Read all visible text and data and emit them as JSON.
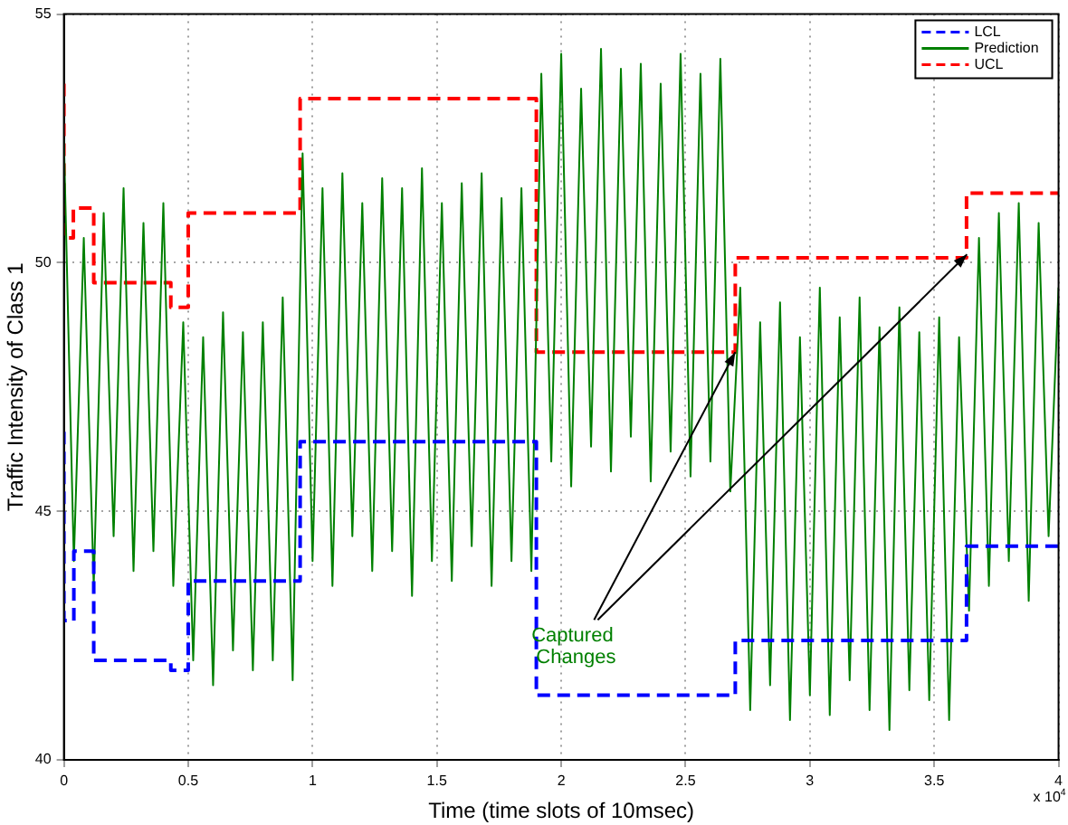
{
  "chart_data": {
    "type": "line",
    "xlabel": "Time (time slots of 10msec)",
    "ylabel": "Traffic Intensity of Class 1",
    "xlim": [
      0,
      4
    ],
    "xticks": [
      0,
      0.5,
      1,
      1.5,
      2,
      2.5,
      3,
      3.5,
      4
    ],
    "ylim": [
      40,
      55
    ],
    "yticks": [
      40,
      45,
      50,
      55
    ],
    "grid": true,
    "legend": "top right",
    "marker": "none",
    "annotations": [
      "x 10$^{4}$",
      {
        "text": "Captured Changes",
        "x": 2.7,
        "y": 48.2
      }
    ],
    "series": [
      {
        "name": "LCL",
        "type": "step",
        "line_style": "dashed",
        "color": "#0000ff",
        "x": [
          0,
          0.04,
          0.12,
          0.43,
          0.5,
          0.95,
          1.9,
          2.7,
          3.63,
          3.84,
          4
        ],
        "values": [
          46.6,
          42.8,
          44.2,
          42.0,
          41.8,
          43.6,
          46.4,
          41.3,
          42.4,
          44.3,
          44.3
        ]
      },
      {
        "name": "Prediction",
        "type": "line",
        "line_style": "solid",
        "color": "#008000",
        "x": [
          0,
          0.04,
          0.08,
          0.12,
          0.16,
          0.2,
          0.24,
          0.28,
          0.32,
          0.36,
          0.4,
          0.44,
          0.48,
          0.52,
          0.56,
          0.6,
          0.64,
          0.68,
          0.72,
          0.76,
          0.8,
          0.84,
          0.88,
          0.92,
          0.96,
          1,
          1.04,
          1.08,
          1.12,
          1.16,
          1.2,
          1.24,
          1.28,
          1.32,
          1.36,
          1.4,
          1.44,
          1.48,
          1.52,
          1.56,
          1.6,
          1.64,
          1.68,
          1.72,
          1.76,
          1.8,
          1.84,
          1.88,
          1.92,
          1.96,
          2,
          2.04,
          2.08,
          2.12,
          2.16,
          2.2,
          2.24,
          2.28,
          2.32,
          2.36,
          2.4,
          2.44,
          2.48,
          2.52,
          2.56,
          2.6,
          2.64,
          2.68,
          2.72,
          2.76,
          2.8,
          2.84,
          2.88,
          2.92,
          2.96,
          3,
          3.04,
          3.08,
          3.12,
          3.16,
          3.2,
          3.24,
          3.28,
          3.32,
          3.36,
          3.4,
          3.44,
          3.48,
          3.52,
          3.56,
          3.6,
          3.64,
          3.68,
          3.72,
          3.76,
          3.8,
          3.84,
          3.88,
          3.92,
          3.96,
          4
        ],
        "values": [
          52.5,
          44,
          50.5,
          43.5,
          51,
          44.5,
          51.5,
          43.8,
          50.8,
          44.2,
          51.2,
          43.5,
          48.8,
          42,
          48.5,
          41.5,
          49,
          42.2,
          48.6,
          41.8,
          48.8,
          42,
          49.3,
          41.6,
          52.2,
          44,
          51.5,
          43.5,
          51.8,
          44.5,
          51.2,
          43.8,
          51.7,
          44.2,
          51.5,
          43.3,
          51.9,
          44,
          51.2,
          43.6,
          51.6,
          44.3,
          51.8,
          43.5,
          51.3,
          44,
          51.5,
          43.8,
          53.8,
          46,
          54.2,
          45.5,
          53.5,
          46.3,
          54.3,
          45.8,
          53.9,
          46.5,
          54,
          45.6,
          53.6,
          46.2,
          54.2,
          45.7,
          53.8,
          46,
          54.1,
          45.4,
          49.5,
          41,
          48.8,
          41.5,
          49.2,
          40.8,
          48.5,
          41.3,
          49.5,
          40.9,
          48.9,
          41.6,
          49.3,
          41,
          48.7,
          40.6,
          49.1,
          41.4,
          48.6,
          41.2,
          48.9,
          40.8,
          48.5,
          43,
          50.5,
          43.5,
          51,
          44,
          51.2,
          43.2,
          50.8,
          44.5,
          49.5
        ]
      },
      {
        "name": "UCL",
        "type": "step",
        "line_style": "dashed",
        "color": "#ff0000",
        "x": [
          0,
          0.038,
          0.12,
          0.43,
          0.5,
          0.95,
          1.9,
          2.7,
          3.63,
          3.84,
          4
        ],
        "values": [
          53.6,
          50.5,
          51.1,
          49.6,
          49.1,
          51.0,
          53.3,
          48.2,
          50.1,
          51.4,
          51.4
        ]
      }
    ]
  }
}
